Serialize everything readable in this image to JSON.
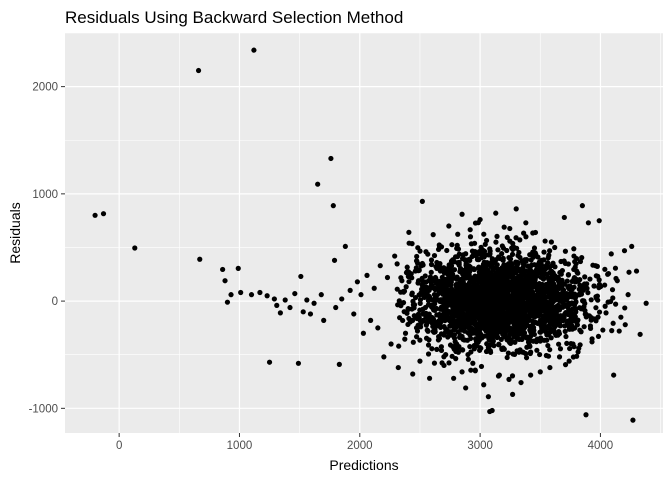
{
  "chart_data": {
    "type": "scatter",
    "title": "Residuals Using Backward Selection Method",
    "xlabel": "Predictions",
    "ylabel": "Residuals",
    "xlim": [
      -450,
      4520
    ],
    "ylim": [
      -1230,
      2500
    ],
    "xticks": [
      0,
      1000,
      2000,
      3000,
      4000
    ],
    "yticks": [
      -1000,
      0,
      1000,
      2000
    ],
    "xtick_labels": [
      "0",
      "1000",
      "2000",
      "3000",
      "4000"
    ],
    "ytick_labels": [
      "-1000",
      "0",
      "1000",
      "2000"
    ],
    "grid": true,
    "legend": "none",
    "colors": {
      "panel": "#ebebeb",
      "grid": "#ffffff",
      "points": "#000000",
      "ticks": "#333333"
    },
    "points": [
      {
        "x": -200,
        "y": 800
      },
      {
        "x": -130,
        "y": 815
      },
      {
        "x": 130,
        "y": 495
      },
      {
        "x": 660,
        "y": 2150
      },
      {
        "x": 1120,
        "y": 2340
      },
      {
        "x": 670,
        "y": 390
      },
      {
        "x": 860,
        "y": 295
      },
      {
        "x": 880,
        "y": 190
      },
      {
        "x": 900,
        "y": -10
      },
      {
        "x": 930,
        "y": 60
      },
      {
        "x": 990,
        "y": 305
      },
      {
        "x": 1010,
        "y": 80
      },
      {
        "x": 1100,
        "y": 60
      },
      {
        "x": 1170,
        "y": 80
      },
      {
        "x": 1230,
        "y": 50
      },
      {
        "x": 1250,
        "y": -570
      },
      {
        "x": 1290,
        "y": 20
      },
      {
        "x": 1310,
        "y": -40
      },
      {
        "x": 1340,
        "y": -110
      },
      {
        "x": 1380,
        "y": 10
      },
      {
        "x": 1420,
        "y": -60
      },
      {
        "x": 1460,
        "y": 70
      },
      {
        "x": 1490,
        "y": -580
      },
      {
        "x": 1510,
        "y": 230
      },
      {
        "x": 1530,
        "y": -100
      },
      {
        "x": 1560,
        "y": 10
      },
      {
        "x": 1590,
        "y": -120
      },
      {
        "x": 1620,
        "y": -20
      },
      {
        "x": 1650,
        "y": 1090
      },
      {
        "x": 1680,
        "y": 60
      },
      {
        "x": 1700,
        "y": -180
      },
      {
        "x": 1760,
        "y": 1330
      },
      {
        "x": 1780,
        "y": 890
      },
      {
        "x": 1790,
        "y": 380
      },
      {
        "x": 1800,
        "y": -60
      },
      {
        "x": 1830,
        "y": -590
      },
      {
        "x": 1850,
        "y": 20
      },
      {
        "x": 1880,
        "y": 510
      },
      {
        "x": 1920,
        "y": 100
      },
      {
        "x": 1950,
        "y": -120
      },
      {
        "x": 1980,
        "y": 180
      },
      {
        "x": 2010,
        "y": 60
      },
      {
        "x": 2030,
        "y": -300
      },
      {
        "x": 2060,
        "y": 240
      },
      {
        "x": 2090,
        "y": -180
      },
      {
        "x": 2120,
        "y": 120
      },
      {
        "x": 2150,
        "y": -250
      },
      {
        "x": 2170,
        "y": 330
      },
      {
        "x": 2200,
        "y": -520
      },
      {
        "x": 2230,
        "y": 220
      },
      {
        "x": 2260,
        "y": -400
      },
      {
        "x": 2290,
        "y": 420
      },
      {
        "x": 2320,
        "y": -620
      },
      {
        "x": 2350,
        "y": 190
      },
      {
        "x": 2380,
        "y": -300
      },
      {
        "x": 2410,
        "y": 540
      },
      {
        "x": 2440,
        "y": -680
      },
      {
        "x": 2470,
        "y": 310
      },
      {
        "x": 2500,
        "y": -560
      },
      {
        "x": 2520,
        "y": 930
      },
      {
        "x": 2550,
        "y": 460
      },
      {
        "x": 2580,
        "y": -720
      },
      {
        "x": 2610,
        "y": 620
      },
      {
        "x": 2640,
        "y": -450
      },
      {
        "x": 2670,
        "y": 280
      },
      {
        "x": 2700,
        "y": -600
      },
      {
        "x": 2740,
        "y": 700
      },
      {
        "x": 2780,
        "y": -720
      },
      {
        "x": 2810,
        "y": 520
      },
      {
        "x": 2850,
        "y": 810
      },
      {
        "x": 2880,
        "y": -810
      },
      {
        "x": 2920,
        "y": 600
      },
      {
        "x": 2960,
        "y": -650
      },
      {
        "x": 3000,
        "y": 760
      },
      {
        "x": 3030,
        "y": -780
      },
      {
        "x": 3080,
        "y": -1030
      },
      {
        "x": 3100,
        "y": -1020
      },
      {
        "x": 3130,
        "y": 820
      },
      {
        "x": 3160,
        "y": -690
      },
      {
        "x": 3200,
        "y": 690
      },
      {
        "x": 3240,
        "y": -730
      },
      {
        "x": 3270,
        "y": -870
      },
      {
        "x": 3300,
        "y": 860
      },
      {
        "x": 3340,
        "y": -760
      },
      {
        "x": 3380,
        "y": 730
      },
      {
        "x": 3420,
        "y": -690
      },
      {
        "x": 3460,
        "y": 640
      },
      {
        "x": 3500,
        "y": -660
      },
      {
        "x": 3540,
        "y": 560
      },
      {
        "x": 3580,
        "y": -620
      },
      {
        "x": 3620,
        "y": 500
      },
      {
        "x": 3660,
        "y": -520
      },
      {
        "x": 3700,
        "y": 780
      },
      {
        "x": 3740,
        "y": -560
      },
      {
        "x": 3780,
        "y": 420
      },
      {
        "x": 3820,
        "y": -440
      },
      {
        "x": 3850,
        "y": 890
      },
      {
        "x": 3880,
        "y": -1060
      },
      {
        "x": 3900,
        "y": 730
      },
      {
        "x": 3930,
        "y": -380
      },
      {
        "x": 3960,
        "y": 330
      },
      {
        "x": 3990,
        "y": 750
      },
      {
        "x": 4020,
        "y": -270
      },
      {
        "x": 4060,
        "y": 250
      },
      {
        "x": 4090,
        "y": 440
      },
      {
        "x": 4110,
        "y": -690
      },
      {
        "x": 4140,
        "y": 190
      },
      {
        "x": 4170,
        "y": -150
      },
      {
        "x": 4200,
        "y": 470
      },
      {
        "x": 4230,
        "y": 60
      },
      {
        "x": 4260,
        "y": 510
      },
      {
        "x": 4270,
        "y": -1110
      },
      {
        "x": 4300,
        "y": 280
      },
      {
        "x": 4330,
        "y": -310
      },
      {
        "x": 4380,
        "y": -20
      }
    ]
  }
}
